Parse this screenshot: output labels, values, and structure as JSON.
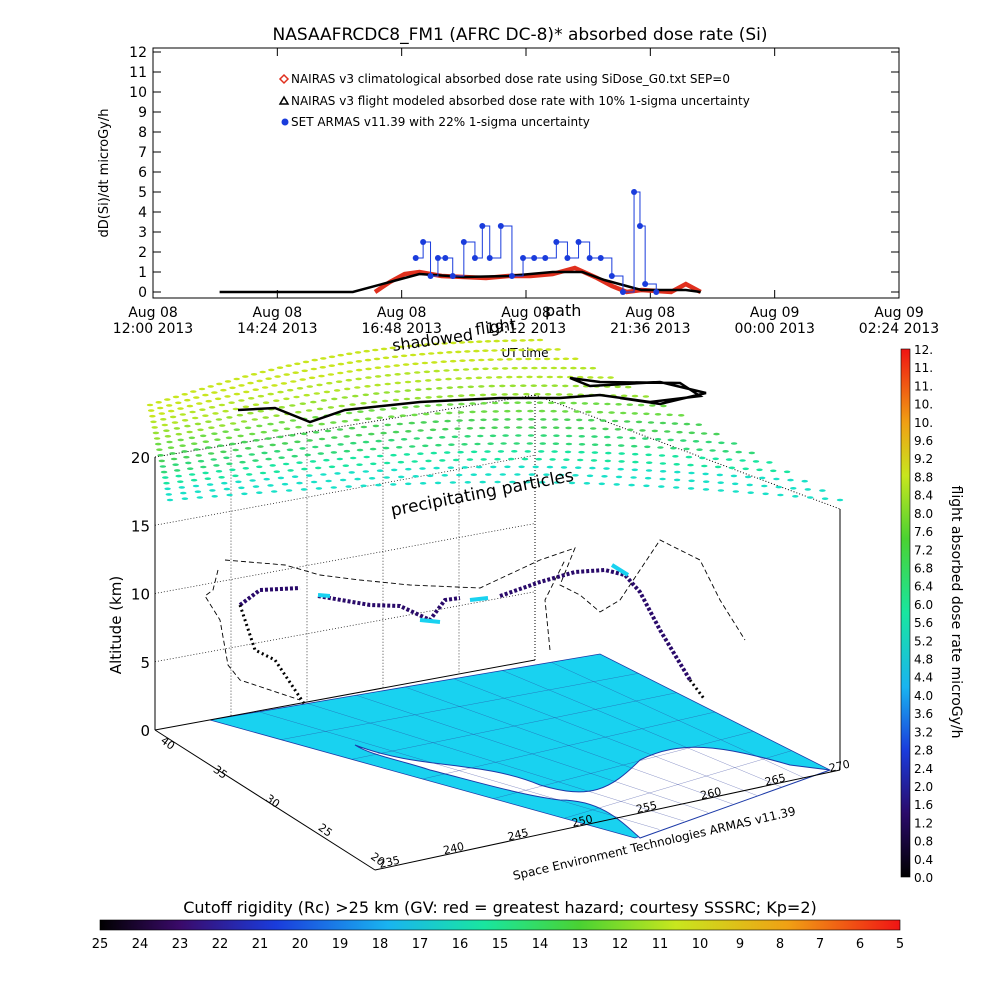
{
  "title": "NASAAFRCDC8_FM1 (AFRC DC-8)* absorbed dose rate (Si)",
  "top_chart": {
    "ylabel": "dD(Si)/dt microGy/h",
    "xlabel": "UT time",
    "y_ticks": [
      "0",
      "1",
      "2",
      "3",
      "4",
      "5",
      "6",
      "7",
      "8",
      "9",
      "10",
      "11",
      "12"
    ],
    "x_ticks": [
      [
        "Aug 08",
        "12:00 2013"
      ],
      [
        "Aug 08",
        "14:24 2013"
      ],
      [
        "Aug 08",
        "16:48 2013"
      ],
      [
        "Aug 08",
        "19:12 2013"
      ],
      [
        "Aug 08",
        "21:36 2013"
      ],
      [
        "Aug 09",
        "00:00 2013"
      ],
      [
        "Aug 09",
        "02:24 2013"
      ]
    ],
    "legend": [
      {
        "label": "NAIRAS v3 climatological absorbed dose rate using SiDose_G0.txt SEP=0",
        "color": "#e0301e"
      },
      {
        "label": "NAIRAS v3 flight modeled absorbed dose rate with 10% 1-sigma uncertainty",
        "color": "#000000"
      },
      {
        "label": "SET ARMAS v11.39 with 22% 1-sigma uncertainty",
        "color": "#1a3cdc"
      }
    ]
  },
  "chart_data": {
    "type": "line",
    "title": "NASAAFRCDC8_FM1 (AFRC DC-8)* absorbed dose rate (Si)",
    "xlabel": "UT time",
    "ylabel": "dD(Si)/dt microGy/h",
    "xlim": [
      "2013-08-08 12:00",
      "2013-08-09 04:48"
    ],
    "ylim": [
      0,
      12
    ],
    "series": [
      {
        "name": "NAIRAS v3 climatological absorbed dose rate using SiDose_G0.txt SEP=0",
        "color": "#e0301e",
        "x": [
          "2013-08-08 17:00",
          "2013-08-08 17:20",
          "2013-08-08 17:40",
          "2013-08-08 18:00",
          "2013-08-08 18:30",
          "2013-08-08 19:00",
          "2013-08-08 19:30",
          "2013-08-08 20:00",
          "2013-08-08 20:30",
          "2013-08-08 21:00",
          "2013-08-08 21:30",
          "2013-08-08 22:00",
          "2013-08-08 22:20",
          "2013-08-08 22:40",
          "2013-08-08 23:00",
          "2013-08-08 23:40",
          "2013-08-09 00:00",
          "2013-08-09 00:20"
        ],
        "values": [
          0.0,
          0.5,
          0.9,
          1.0,
          0.8,
          0.75,
          0.7,
          0.8,
          0.8,
          0.9,
          1.2,
          0.7,
          0.3,
          0.0,
          0.1,
          0.0,
          0.4,
          0.0
        ]
      },
      {
        "name": "NAIRAS v3 flight modeled absorbed dose rate with 10% 1-sigma uncertainty",
        "color": "#000000",
        "x": [
          "2013-08-08 13:30",
          "2013-08-08 15:00",
          "2013-08-08 16:30",
          "2013-08-08 17:20",
          "2013-08-08 18:00",
          "2013-08-08 19:00",
          "2013-08-08 20:00",
          "2013-08-08 21:00",
          "2013-08-08 21:40",
          "2013-08-08 22:10",
          "2013-08-08 23:00",
          "2013-08-09 00:00",
          "2013-08-09 00:20"
        ],
        "values": [
          0.0,
          0.0,
          0.0,
          0.5,
          0.9,
          0.75,
          0.8,
          1.0,
          1.0,
          0.6,
          0.1,
          0.1,
          0.0
        ]
      },
      {
        "name": "SET ARMAS v11.39 with 22% 1-sigma uncertainty",
        "color": "#1a3cdc",
        "x": [
          "2013-08-08 17:55",
          "2013-08-08 18:05",
          "2013-08-08 18:15",
          "2013-08-08 18:25",
          "2013-08-08 18:35",
          "2013-08-08 18:45",
          "2013-08-08 19:00",
          "2013-08-08 19:15",
          "2013-08-08 19:25",
          "2013-08-08 19:35",
          "2013-08-08 19:50",
          "2013-08-08 20:05",
          "2013-08-08 20:20",
          "2013-08-08 20:35",
          "2013-08-08 20:50",
          "2013-08-08 21:05",
          "2013-08-08 21:20",
          "2013-08-08 21:35",
          "2013-08-08 21:50",
          "2013-08-08 22:05",
          "2013-08-08 22:20",
          "2013-08-08 22:35",
          "2013-08-08 22:50",
          "2013-08-08 22:58",
          "2013-08-08 23:05",
          "2013-08-08 23:20"
        ],
        "values": [
          1.7,
          2.5,
          0.8,
          1.7,
          1.7,
          0.8,
          2.5,
          1.7,
          3.3,
          1.7,
          3.3,
          0.8,
          1.7,
          1.7,
          1.7,
          2.5,
          1.7,
          2.5,
          1.7,
          1.7,
          0.8,
          0.0,
          5.0,
          3.3,
          0.4,
          0.0
        ]
      }
    ]
  },
  "map3d": {
    "annotation_path": "path",
    "annotation_shadowed": "shadowed",
    "annotation_flight": "flight",
    "label_precip": "precipitating particles",
    "zlabel": "Altitude (km)",
    "z_ticks": [
      "0",
      "5",
      "10",
      "15",
      "20"
    ],
    "lat_ticks": [
      "40",
      "35",
      "30",
      "25",
      "20"
    ],
    "lon_ticks": [
      "235",
      "240",
      "245",
      "250",
      "255",
      "260",
      "265",
      "270"
    ],
    "credit": "Space Environment Technologies ARMAS v11.39"
  },
  "dose_colorbar": {
    "label": "flight absorbed dose rate microGy/h",
    "ticks": [
      "0.0",
      "0.4",
      "0.8",
      "1.2",
      "1.6",
      "2.0",
      "2.4",
      "2.8",
      "3.2",
      "3.6",
      "4.0",
      "4.4",
      "4.8",
      "5.2",
      "5.6",
      "6.0",
      "6.4",
      "6.8",
      "7.2",
      "7.6",
      "8.0",
      "8.4",
      "8.8",
      "9.2",
      "9.6",
      "10.",
      "10.",
      "11.",
      "11.",
      "12."
    ]
  },
  "cutoff_colorbar": {
    "label": "Cutoff rigidity (Rc) >25 km (GV: red = greatest hazard; courtesy SSSRC; Kp=2)",
    "ticks": [
      "25",
      "24",
      "23",
      "22",
      "21",
      "20",
      "19",
      "18",
      "17",
      "16",
      "15",
      "14",
      "13",
      "12",
      "11",
      "10",
      "9",
      "8",
      "7",
      "6",
      "5"
    ]
  },
  "colors": {
    "climatological": "#e0301e",
    "modeled": "#000000",
    "armas": "#1a3cdc",
    "ground": "#19d2f0",
    "coast": "#1c3aa8"
  }
}
